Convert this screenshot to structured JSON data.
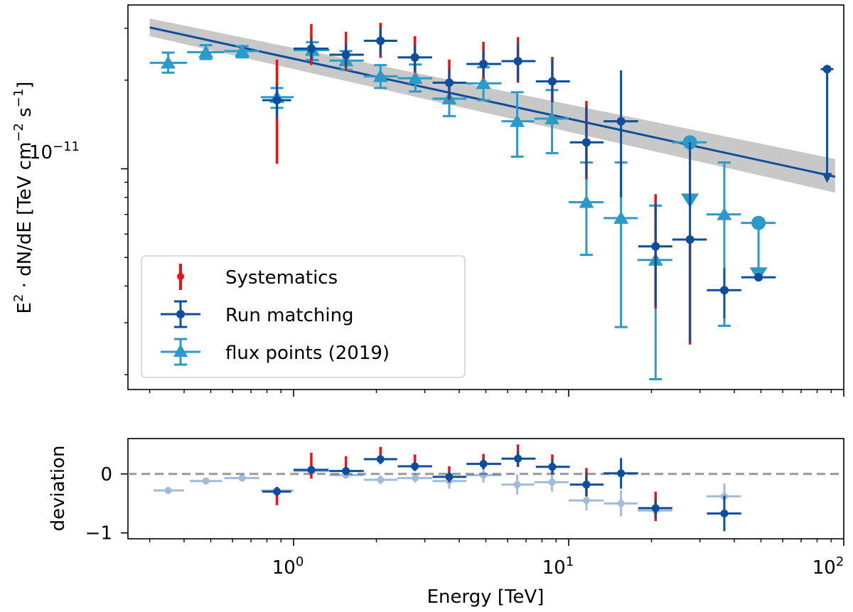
{
  "chart_data": [
    {
      "type": "scatter",
      "panel": "main",
      "xscale": "log",
      "yscale": "log",
      "xlim": [
        0.25,
        100
      ],
      "ylim": [
        1.78e-12,
        3.6e-11
      ],
      "xlabel": "Energy [TeV]",
      "ylabel_main": "E",
      "ylabel_sup1": "2",
      "ylabel_mid": " · dN/dE [TeV cm",
      "ylabel_sup2": "−2",
      "ylabel_mid2": " s",
      "ylabel_sup3": "−1",
      "ylabel_end": "]",
      "y_tick_base": "10",
      "y_tick_exp": "−11",
      "x_tick_base": "10",
      "x_tick_exps": [
        "0",
        "1",
        "2"
      ],
      "legend_position": "lower-left",
      "legend": [
        "Systematics",
        "Run matching",
        "flux points (2019)"
      ],
      "colors": {
        "run_matching": "#0d4e9c",
        "flux_2019": "#2b9ac9",
        "systematics": "#ee1111",
        "model_band": "#c8c8c8",
        "zero_line": "#999999"
      },
      "model": {
        "line": [
          [
            0.3,
            3.02e-11
          ],
          [
            93,
            9.4e-12
          ]
        ],
        "band": {
          "x": [
            0.3,
            93
          ],
          "upper": [
            3.24e-11,
            1.08e-11
          ],
          "lower": [
            2.82e-11,
            8.3e-12
          ]
        }
      },
      "series": [
        {
          "name": "flux points (2019)",
          "marker": "triangle",
          "points": [
            {
              "x": 0.35,
              "y": 2.29e-11,
              "xlo": 0.3,
              "xhi": 0.41,
              "ylo": 2.12e-11,
              "yhi": 2.48e-11
            },
            {
              "x": 0.48,
              "y": 2.49e-11,
              "xlo": 0.41,
              "xhi": 0.56,
              "ylo": 2.36e-11,
              "yhi": 2.63e-11
            },
            {
              "x": 0.65,
              "y": 2.51e-11,
              "xlo": 0.56,
              "xhi": 0.75,
              "ylo": 2.39e-11,
              "yhi": 2.61e-11
            },
            {
              "x": 0.87,
              "y": 1.75e-11,
              "xlo": 0.76,
              "xhi": 1.0,
              "ylo": 1.61e-11,
              "yhi": 1.88e-11
            },
            {
              "x": 1.17,
              "y": 2.53e-11,
              "xlo": 1.0,
              "xhi": 1.35,
              "ylo": 2.34e-11,
              "yhi": 2.69e-11
            },
            {
              "x": 1.55,
              "y": 2.33e-11,
              "xlo": 1.35,
              "xhi": 1.8,
              "ylo": 2.17e-11,
              "yhi": 2.51e-11
            },
            {
              "x": 2.07,
              "y": 2.06e-11,
              "xlo": 1.8,
              "xhi": 2.39,
              "ylo": 1.88e-11,
              "yhi": 2.25e-11
            },
            {
              "x": 2.77,
              "y": 2.03e-11,
              "xlo": 2.39,
              "xhi": 3.19,
              "ylo": 1.83e-11,
              "yhi": 2.26e-11
            },
            {
              "x": 3.68,
              "y": 1.73e-11,
              "xlo": 3.2,
              "xhi": 4.25,
              "ylo": 1.51e-11,
              "yhi": 1.96e-11
            },
            {
              "x": 4.9,
              "y": 1.95e-11,
              "xlo": 4.25,
              "xhi": 5.7,
              "ylo": 1.71e-11,
              "yhi": 2.21e-11
            },
            {
              "x": 6.5,
              "y": 1.45e-11,
              "xlo": 5.7,
              "xhi": 7.5,
              "ylo": 1.1e-11,
              "yhi": 1.82e-11
            },
            {
              "x": 8.7,
              "y": 1.48e-11,
              "xlo": 7.5,
              "xhi": 10.0,
              "ylo": 1.13e-11,
              "yhi": 1.85e-11
            },
            {
              "x": 11.6,
              "y": 7.7e-12,
              "xlo": 10.0,
              "xhi": 13.4,
              "ylo": 5.1e-12,
              "yhi": 1.05e-11
            },
            {
              "x": 15.5,
              "y": 6.8e-12,
              "xlo": 13.4,
              "xhi": 17.8,
              "ylo": 2.9e-12,
              "yhi": 1.05e-11
            },
            {
              "x": 20.7,
              "y": 4.9e-12,
              "xlo": 17.8,
              "xhi": 23.8,
              "ylo": 1.93e-12,
              "yhi": 7.5e-12
            },
            {
              "x": 36.8,
              "y": 7e-12,
              "xlo": 31.7,
              "xhi": 42.3,
              "ylo": 2.93e-12,
              "yhi": 1.05e-11
            }
          ],
          "upper_limits": [
            {
              "x": 27.6,
              "y": 1.23e-11,
              "arrow_to": 7.8e-12,
              "xlo": 23.8,
              "xhi": 31.7
            },
            {
              "x": 49.0,
              "y": 6.55e-12,
              "arrow_to": 4.38e-12,
              "xlo": 42.3,
              "xhi": 56.5
            }
          ]
        },
        {
          "name": "Run matching",
          "marker": "circle",
          "points": [
            {
              "x": 0.87,
              "y": 1.71e-11,
              "xlo": 0.77,
              "xhi": 0.98,
              "ylo": 1.49e-11,
              "yhi": 1.93e-11
            },
            {
              "x": 1.16,
              "y": 2.56e-11,
              "xlo": 1.0,
              "xhi": 1.34,
              "ylo": 2.35e-11,
              "yhi": 2.77e-11
            },
            {
              "x": 1.55,
              "y": 2.44e-11,
              "xlo": 1.35,
              "xhi": 1.8,
              "ylo": 2.22e-11,
              "yhi": 2.66e-11
            },
            {
              "x": 2.07,
              "y": 2.72e-11,
              "xlo": 1.8,
              "xhi": 2.38,
              "ylo": 2.43e-11,
              "yhi": 3.02e-11
            },
            {
              "x": 2.76,
              "y": 2.39e-11,
              "xlo": 2.39,
              "xhi": 3.19,
              "ylo": 2.15e-11,
              "yhi": 2.63e-11
            },
            {
              "x": 3.68,
              "y": 1.96e-11,
              "xlo": 3.2,
              "xhi": 4.25,
              "ylo": 1.73e-11,
              "yhi": 2.19e-11
            },
            {
              "x": 4.9,
              "y": 2.27e-11,
              "xlo": 4.25,
              "xhi": 5.68,
              "ylo": 2.04e-11,
              "yhi": 2.52e-11
            },
            {
              "x": 6.54,
              "y": 2.32e-11,
              "xlo": 5.7,
              "xhi": 7.58,
              "ylo": 1.98e-11,
              "yhi": 2.68e-11
            },
            {
              "x": 8.72,
              "y": 1.98e-11,
              "xlo": 7.6,
              "xhi": 10.1,
              "ylo": 1.69e-11,
              "yhi": 2.35e-11
            },
            {
              "x": 11.6,
              "y": 1.23e-11,
              "xlo": 10.1,
              "xhi": 13.4,
              "ylo": 9.3e-12,
              "yhi": 1.63e-11
            },
            {
              "x": 15.5,
              "y": 1.45e-11,
              "xlo": 13.4,
              "xhi": 17.9,
              "ylo": 8e-12,
              "yhi": 2.16e-11
            },
            {
              "x": 20.7,
              "y": 5.45e-12,
              "xlo": 17.9,
              "xhi": 23.8,
              "ylo": 3.4e-12,
              "yhi": 7.6e-12
            },
            {
              "x": 27.6,
              "y": 5.75e-12,
              "xlo": 23.8,
              "xhi": 31.8,
              "ylo": 2.57e-12,
              "yhi": 1.23e-11
            },
            {
              "x": 36.8,
              "y": 3.87e-12,
              "xlo": 31.8,
              "xhi": 42.4,
              "ylo": 3.1e-12,
              "yhi": 4.6e-12
            }
          ],
          "upper_limits": [
            {
              "x": 49.0,
              "y": 4.28e-12,
              "arrow_to": null,
              "xlo": 42.4,
              "xhi": 56.6
            },
            {
              "x": 87.0,
              "y": 2.18e-11,
              "arrow_to": 9.05e-12,
              "xlo": null,
              "xhi": null
            }
          ]
        },
        {
          "name": "Systematics",
          "marker": "point",
          "points": [
            {
              "x": 0.87,
              "ylo": 1.04e-11,
              "yhi": 2.35e-11
            },
            {
              "x": 1.16,
              "ylo": 2.25e-11,
              "yhi": 3.1e-11
            },
            {
              "x": 1.55,
              "ylo": 2.15e-11,
              "yhi": 2.92e-11
            },
            {
              "x": 2.07,
              "ylo": 2.38e-11,
              "yhi": 3.13e-11
            },
            {
              "x": 2.76,
              "ylo": 2.12e-11,
              "yhi": 2.82e-11
            },
            {
              "x": 3.68,
              "ylo": 1.71e-11,
              "yhi": 2.35e-11
            },
            {
              "x": 4.9,
              "ylo": 2.02e-11,
              "yhi": 2.7e-11
            },
            {
              "x": 6.54,
              "ylo": 1.96e-11,
              "yhi": 2.8e-11
            },
            {
              "x": 8.72,
              "ylo": 1.68e-11,
              "yhi": 2.4e-11
            },
            {
              "x": 11.6,
              "ylo": 9.2e-12,
              "yhi": 1.7e-11
            },
            {
              "x": 20.7,
              "ylo": 3.35e-12,
              "yhi": 8.2e-12
            },
            {
              "x": 27.6,
              "ylo": 2.53e-12,
              "yhi": 5.75e-12
            }
          ]
        }
      ]
    },
    {
      "type": "scatter",
      "panel": "residual",
      "xscale": "log",
      "xlim": [
        0.25,
        100
      ],
      "ylim": [
        -1.1,
        0.6
      ],
      "ylabel": "deviation",
      "xlabel": "Energy [TeV]",
      "y_ticks": [
        {
          "value": 0,
          "label": "0"
        },
        {
          "value": -1,
          "label": "−1"
        }
      ],
      "zero_line": 0,
      "series": [
        {
          "name": "flux points (2019)",
          "style": "faded",
          "points": [
            {
              "x": 0.35,
              "y": -0.28,
              "xlo": 0.31,
              "xhi": 0.4,
              "ylo": -0.34,
              "yhi": -0.22
            },
            {
              "x": 0.48,
              "y": -0.12,
              "xlo": 0.42,
              "xhi": 0.55,
              "ylo": -0.16,
              "yhi": -0.08
            },
            {
              "x": 0.65,
              "y": -0.07,
              "xlo": 0.56,
              "xhi": 0.75,
              "ylo": -0.11,
              "yhi": -0.03
            },
            {
              "x": 0.87,
              "y": -0.28,
              "xlo": 0.76,
              "xhi": 1.0,
              "ylo": -0.34,
              "yhi": -0.22
            },
            {
              "x": 1.17,
              "y": 0.05,
              "xlo": 1.0,
              "xhi": 1.35,
              "ylo": 0.0,
              "yhi": 0.1
            },
            {
              "x": 1.55,
              "y": -0.02,
              "xlo": 1.35,
              "xhi": 1.8,
              "ylo": -0.08,
              "yhi": 0.04
            },
            {
              "x": 2.07,
              "y": -0.1,
              "xlo": 1.8,
              "xhi": 2.39,
              "ylo": -0.17,
              "yhi": -0.03
            },
            {
              "x": 2.77,
              "y": -0.07,
              "xlo": 2.39,
              "xhi": 3.19,
              "ylo": -0.15,
              "yhi": 0.01
            },
            {
              "x": 3.68,
              "y": -0.12,
              "xlo": 3.2,
              "xhi": 4.25,
              "ylo": -0.25,
              "yhi": 0.01
            },
            {
              "x": 4.9,
              "y": -0.02,
              "xlo": 4.25,
              "xhi": 5.7,
              "ylo": -0.15,
              "yhi": 0.11
            },
            {
              "x": 6.5,
              "y": -0.18,
              "xlo": 5.7,
              "xhi": 7.5,
              "ylo": -0.35,
              "yhi": -0.01
            },
            {
              "x": 8.7,
              "y": -0.14,
              "xlo": 7.5,
              "xhi": 10.0,
              "ylo": -0.3,
              "yhi": 0.02
            },
            {
              "x": 11.6,
              "y": -0.45,
              "xlo": 10.0,
              "xhi": 13.4,
              "ylo": -0.62,
              "yhi": -0.28
            },
            {
              "x": 15.5,
              "y": -0.5,
              "xlo": 13.4,
              "xhi": 17.8,
              "ylo": -0.72,
              "yhi": -0.28
            },
            {
              "x": 20.7,
              "y": -0.62,
              "xlo": 17.8,
              "xhi": 23.8,
              "ylo": -0.78,
              "yhi": -0.46
            },
            {
              "x": 36.8,
              "y": -0.38,
              "xlo": 31.7,
              "xhi": 42.3,
              "ylo": -0.6,
              "yhi": -0.16
            }
          ]
        },
        {
          "name": "Run matching",
          "style": "solid",
          "points": [
            {
              "x": 0.87,
              "y": -0.3,
              "xlo": 0.77,
              "xhi": 0.98,
              "ylo": -0.38,
              "yhi": -0.22
            },
            {
              "x": 1.16,
              "y": 0.07,
              "xlo": 1.0,
              "xhi": 1.34,
              "ylo": 0.0,
              "yhi": 0.14
            },
            {
              "x": 1.55,
              "y": 0.05,
              "xlo": 1.35,
              "xhi": 1.8,
              "ylo": -0.02,
              "yhi": 0.12
            },
            {
              "x": 2.07,
              "y": 0.25,
              "xlo": 1.8,
              "xhi": 2.38,
              "ylo": 0.17,
              "yhi": 0.33
            },
            {
              "x": 2.76,
              "y": 0.13,
              "xlo": 2.39,
              "xhi": 3.19,
              "ylo": 0.05,
              "yhi": 0.21
            },
            {
              "x": 3.68,
              "y": -0.05,
              "xlo": 3.2,
              "xhi": 4.25,
              "ylo": -0.14,
              "yhi": 0.04
            },
            {
              "x": 4.9,
              "y": 0.17,
              "xlo": 4.25,
              "xhi": 5.68,
              "ylo": 0.08,
              "yhi": 0.26
            },
            {
              "x": 6.54,
              "y": 0.26,
              "xlo": 5.7,
              "xhi": 7.58,
              "ylo": 0.12,
              "yhi": 0.4
            },
            {
              "x": 8.72,
              "y": 0.12,
              "xlo": 7.6,
              "xhi": 10.1,
              "ylo": 0.0,
              "yhi": 0.24
            },
            {
              "x": 11.6,
              "y": -0.18,
              "xlo": 10.1,
              "xhi": 13.4,
              "ylo": -0.38,
              "yhi": 0.02
            },
            {
              "x": 15.5,
              "y": 0.01,
              "xlo": 13.4,
              "xhi": 17.9,
              "ylo": -0.25,
              "yhi": 0.27
            },
            {
              "x": 20.7,
              "y": -0.58,
              "xlo": 17.9,
              "xhi": 23.8,
              "ylo": -0.73,
              "yhi": -0.43
            },
            {
              "x": 36.8,
              "y": -0.67,
              "xlo": 31.8,
              "xhi": 42.4,
              "ylo": -0.97,
              "yhi": -0.37
            }
          ]
        },
        {
          "name": "Systematics",
          "points": [
            {
              "x": 0.87,
              "ylo": -0.53,
              "yhi": -0.24
            },
            {
              "x": 1.16,
              "ylo": -0.08,
              "yhi": 0.36
            },
            {
              "x": 1.55,
              "ylo": -0.02,
              "yhi": 0.3
            },
            {
              "x": 2.07,
              "ylo": 0.17,
              "yhi": 0.46
            },
            {
              "x": 2.76,
              "ylo": 0.05,
              "yhi": 0.33
            },
            {
              "x": 3.68,
              "ylo": -0.14,
              "yhi": 0.13
            },
            {
              "x": 4.9,
              "ylo": 0.08,
              "yhi": 0.34
            },
            {
              "x": 6.54,
              "ylo": 0.12,
              "yhi": 0.5
            },
            {
              "x": 8.72,
              "ylo": 0.0,
              "yhi": 0.33
            },
            {
              "x": 11.6,
              "ylo": -0.38,
              "yhi": 0.1
            },
            {
              "x": 20.7,
              "ylo": -0.8,
              "yhi": -0.3
            }
          ]
        }
      ]
    }
  ]
}
